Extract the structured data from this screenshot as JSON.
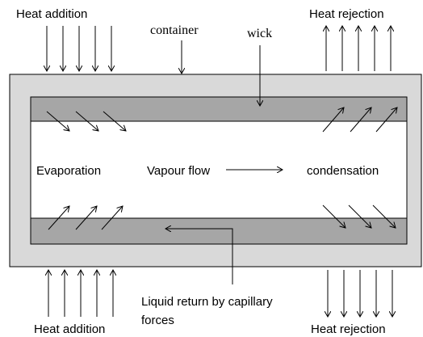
{
  "labels": {
    "heat_addition_top": "Heat addition",
    "container": "container",
    "wick": "wick",
    "heat_rejection_top": "Heat rejection",
    "evaporation": "Evaporation",
    "vapour_flow": "Vapour flow",
    "condensation": "condensation",
    "liquid_return_line1": "Liquid return by capillary",
    "liquid_return_line2": "forces",
    "heat_addition_bottom": "Heat addition",
    "heat_rejection_bottom": "Heat rejection"
  }
}
